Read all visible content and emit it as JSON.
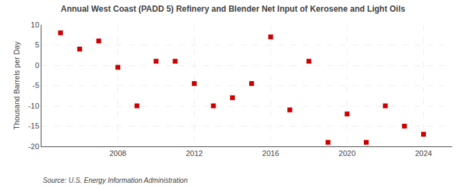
{
  "chart_data": {
    "type": "scatter",
    "title": "Annual West Coast (PADD 5) Refinery and Blender Net Input of Kerosene and Light Oils",
    "ylabel": "Thousand Barrels per Day",
    "annotations": [
      "Source: U.S. Energy Information Administration"
    ],
    "x": [
      2005,
      2006,
      2007,
      2008,
      2009,
      2010,
      2011,
      2012,
      2013,
      2014,
      2015,
      2016,
      2017,
      2018,
      2019,
      2020,
      2021,
      2022,
      2023,
      2024
    ],
    "values": [
      8,
      4,
      6,
      -0.5,
      -10,
      1,
      1,
      -4.5,
      -10,
      -8,
      -4.5,
      7,
      -11,
      1,
      -19,
      -12,
      -19,
      -10,
      -15,
      -17
    ],
    "color": "#cc0000",
    "marker": "square",
    "xlim": [
      2004,
      2025.5
    ],
    "ylim": [
      -20,
      10
    ],
    "xticks": [
      2008,
      2012,
      2016,
      2020,
      2024
    ],
    "yticks": [
      -20,
      -15,
      -10,
      -5,
      0,
      5,
      10
    ],
    "grid": true
  }
}
